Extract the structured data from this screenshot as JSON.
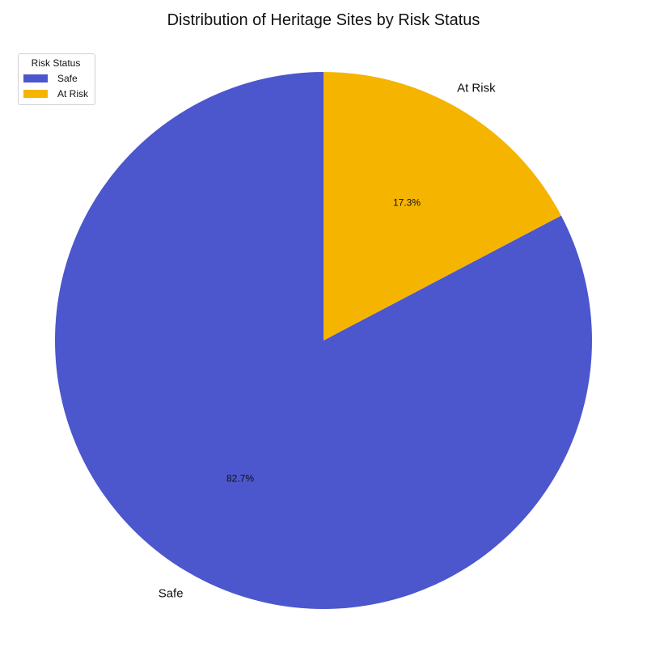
{
  "chart_data": {
    "type": "pie",
    "title": "Distribution of Heritage Sites by Risk Status",
    "legend_title": "Risk Status",
    "legend_position": "top-left",
    "slices": [
      {
        "label": "Safe",
        "percent": 82.7,
        "percent_label": "82.7%",
        "color": "#4c56cd"
      },
      {
        "label": "At Risk",
        "percent": 17.3,
        "percent_label": "17.3%",
        "color": "#f5b400"
      }
    ],
    "start_angle_deg": 90,
    "direction": "clockwise-from-top for At Risk"
  }
}
